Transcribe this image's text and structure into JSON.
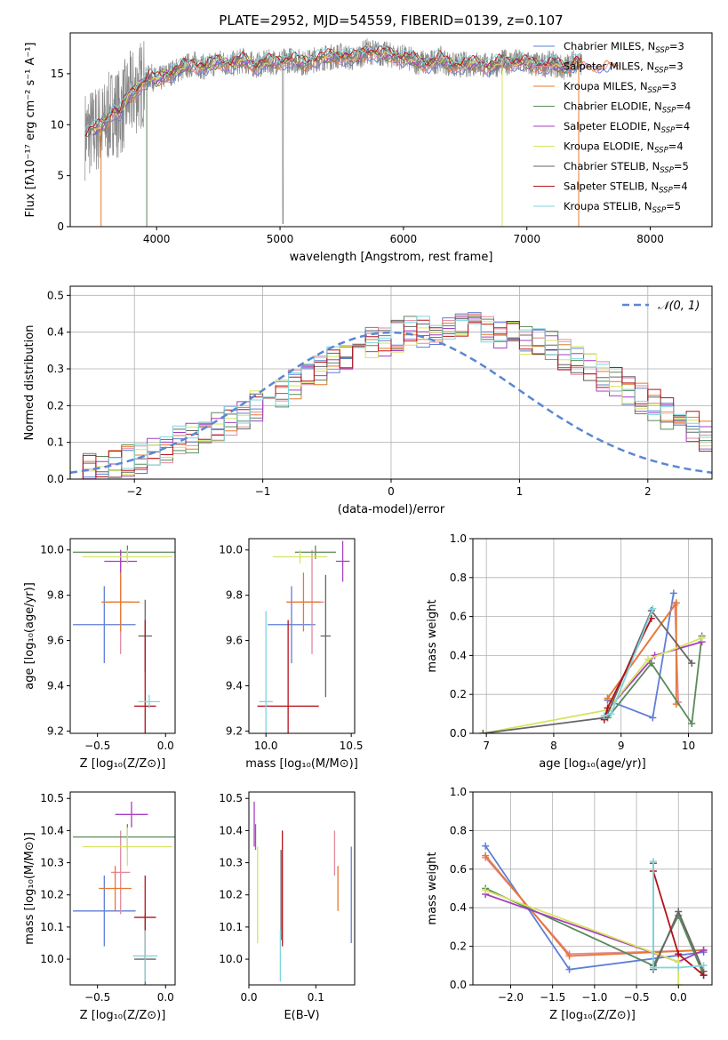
{
  "colors": {
    "chabrier_miles": "#5f7fd6",
    "salpeter_miles": "#e3899f",
    "kroupa_miles": "#e6782f",
    "chabrier_elodie": "#5a8a5a",
    "salpeter_elodie": "#a63fbf",
    "kroupa_elodie": "#d7e35f",
    "chabrier_stelib": "#666666",
    "salpeter_stelib": "#b5121b",
    "kroupa_stelib": "#7fd6dd",
    "normal": "#5b86d4",
    "data": "#888888"
  },
  "chart_data": [
    {
      "id": "spectrum",
      "type": "line",
      "title": "PLATE=2952, MJD=54559, FIBERID=0139, z=0.107",
      "xlabel": "wavelength [Angstrom, rest frame]",
      "ylabel": "Flux [fλ10⁻¹⁷ erg cm⁻² s⁻¹ A⁻¹]",
      "xlim": [
        3300,
        8500
      ],
      "ylim": [
        0,
        19
      ],
      "xticks": [
        4000,
        5000,
        6000,
        7000,
        8000
      ],
      "yticks": [
        0,
        5,
        10,
        15
      ],
      "grid": false,
      "legend_position": "right",
      "continuum": {
        "x": [
          3420,
          3500,
          3580,
          3650,
          3700,
          3760,
          3820,
          3880,
          3950,
          4000,
          4100,
          4200,
          4300,
          4400,
          4500,
          4600,
          4700,
          4800,
          4900,
          5000,
          5100,
          5200,
          5300,
          5400,
          5500,
          5600,
          5700,
          5800,
          5900,
          6000,
          6100,
          6200,
          6300,
          6400,
          6500,
          6600,
          6700,
          6800,
          6900,
          7000,
          7100,
          7200,
          7300,
          7400,
          7450
        ],
        "y": [
          9.0,
          9.5,
          10.0,
          11.5,
          11.0,
          12.5,
          13.2,
          14.0,
          14.8,
          14.3,
          15.0,
          15.5,
          16.0,
          15.6,
          16.2,
          15.9,
          16.3,
          15.8,
          16.1,
          16.2,
          16.4,
          16.0,
          16.5,
          16.6,
          16.8,
          16.4,
          17.2,
          17.0,
          16.8,
          16.6,
          16.2,
          16.0,
          16.4,
          15.8,
          15.9,
          16.0,
          15.7,
          16.1,
          16.2,
          16.0,
          15.8,
          16.0,
          15.5,
          16.3,
          16.0
        ]
      },
      "series": [
        {
          "name": "Chabrier MILES, N_SSP=3",
          "key": "chabrier_miles"
        },
        {
          "name": "Salpeter MILES, N_SSP=3",
          "key": "salpeter_miles"
        },
        {
          "name": "Kroupa MILES, N_SSP=3",
          "key": "kroupa_miles"
        },
        {
          "name": "Chabrier ELODIE, N_SSP=4",
          "key": "chabrier_elodie"
        },
        {
          "name": "Salpeter ELODIE, N_SSP=4",
          "key": "salpeter_elodie"
        },
        {
          "name": "Kroupa ELODIE, N_SSP=4",
          "key": "kroupa_elodie"
        },
        {
          "name": "Chabrier STELIB, N_SSP=5",
          "key": "chabrier_stelib"
        },
        {
          "name": "Salpeter STELIB, N_SSP=4",
          "key": "salpeter_stelib"
        },
        {
          "name": "Kroupa STELIB, N_SSP=5",
          "key": "kroupa_stelib"
        }
      ],
      "legend": [
        {
          "prefix": "Chabrier MILES, N",
          "sub": "SSP",
          "suffix": "=3"
        },
        {
          "prefix": "Salpeter MILES, N",
          "sub": "SSP",
          "suffix": "=3"
        },
        {
          "prefix": "Kroupa MILES, N",
          "sub": "SSP",
          "suffix": "=3"
        },
        {
          "prefix": "Chabrier ELODIE, N",
          "sub": "SSP",
          "suffix": "=4"
        },
        {
          "prefix": "Salpeter ELODIE, N",
          "sub": "SSP",
          "suffix": "=4"
        },
        {
          "prefix": "Kroupa ELODIE, N",
          "sub": "SSP",
          "suffix": "=4"
        },
        {
          "prefix": "Chabrier STELIB, N",
          "sub": "SSP",
          "suffix": "=5"
        },
        {
          "prefix": "Salpeter STELIB, N",
          "sub": "SSP",
          "suffix": "=4"
        },
        {
          "prefix": "Kroupa STELIB, N",
          "sub": "SSP",
          "suffix": "=5"
        }
      ]
    },
    {
      "id": "residuals",
      "type": "histogram",
      "xlabel": "(data-model)/error",
      "ylabel": "Normed distribution",
      "xlim": [
        -2.5,
        2.5
      ],
      "ylim": [
        0,
        0.525
      ],
      "xticks": [
        -2,
        -1,
        0,
        1,
        2
      ],
      "yticks": [
        0.0,
        0.1,
        0.2,
        0.3,
        0.4,
        0.5
      ],
      "grid": true,
      "legend_label": "𝒩(0, 1)",
      "legend_position": "top-right",
      "bin_width": 0.1,
      "bins_start": -2.5,
      "base": [
        0.02,
        0.025,
        0.03,
        0.04,
        0.05,
        0.06,
        0.07,
        0.08,
        0.1,
        0.11,
        0.12,
        0.14,
        0.16,
        0.18,
        0.2,
        0.22,
        0.24,
        0.26,
        0.28,
        0.3,
        0.32,
        0.34,
        0.36,
        0.37,
        0.38,
        0.39,
        0.4,
        0.4,
        0.41,
        0.41,
        0.41,
        0.41,
        0.4,
        0.4,
        0.39,
        0.38,
        0.37,
        0.36,
        0.34,
        0.32,
        0.3,
        0.28,
        0.26,
        0.24,
        0.22,
        0.2,
        0.18,
        0.16,
        0.14,
        0.12,
        0.1,
        0.09,
        0.08,
        0.07,
        0.06,
        0.05,
        0.04,
        0.035,
        0.03,
        0.025
      ]
    },
    {
      "id": "age-vs-z",
      "type": "errorbar",
      "xlabel": "Z [log₁₀(Z/Z⊙)]",
      "ylabel": "age  [log₁₀(age/yr)]",
      "xlim": [
        -0.7,
        0.07
      ],
      "ylim": [
        9.19,
        10.05
      ],
      "xticks": [
        -0.5,
        0.0
      ],
      "yticks": [
        9.2,
        9.4,
        9.6,
        9.8,
        10.0
      ],
      "grid": false,
      "points": [
        {
          "key": "chabrier_miles",
          "x": -0.45,
          "xerr": 0.23,
          "y": 9.67,
          "yerr": 0.17
        },
        {
          "key": "salpeter_miles",
          "x": -0.33,
          "xerr": 0.07,
          "y": 9.77,
          "yerr": 0.23
        },
        {
          "key": "kroupa_miles",
          "x": -0.33,
          "xerr": 0.14,
          "y": 9.77,
          "yerr": 0.13
        },
        {
          "key": "chabrier_elodie",
          "x": -0.28,
          "xerr": 0.4,
          "y": 9.99,
          "yerr": 0.03
        },
        {
          "key": "salpeter_elodie",
          "x": -0.33,
          "xerr": 0.12,
          "y": 9.95,
          "yerr": 0.05
        },
        {
          "key": "kroupa_elodie",
          "x": -0.28,
          "xerr": 0.33,
          "y": 9.97,
          "yerr": 0.03
        },
        {
          "key": "chabrier_stelib",
          "x": -0.15,
          "xerr": 0.05,
          "y": 9.62,
          "yerr": 0.16
        },
        {
          "key": "salpeter_stelib",
          "x": -0.15,
          "xerr": 0.08,
          "y": 9.31,
          "yerr": 0.38
        },
        {
          "key": "kroupa_stelib",
          "x": -0.12,
          "xerr": 0.08,
          "y": 9.33,
          "yerr": 0.03
        }
      ]
    },
    {
      "id": "age-vs-mass",
      "type": "errorbar",
      "xlabel": "mass [log₁₀(M/M⊙)]",
      "ylabel": "",
      "xlim": [
        9.9,
        10.52
      ],
      "ylim": [
        9.19,
        10.05
      ],
      "xticks": [
        10.0,
        10.5
      ],
      "yticks": [
        9.2,
        9.4,
        9.6,
        9.8,
        10.0
      ],
      "grid": false,
      "points": [
        {
          "key": "chabrier_miles",
          "x": 10.15,
          "xerr": 0.14,
          "y": 9.67,
          "yerr": 0.17
        },
        {
          "key": "salpeter_miles",
          "x": 10.27,
          "xerr": 0.07,
          "y": 9.77,
          "yerr": 0.23
        },
        {
          "key": "kroupa_miles",
          "x": 10.22,
          "xerr": 0.1,
          "y": 9.77,
          "yerr": 0.13
        },
        {
          "key": "chabrier_elodie",
          "x": 10.29,
          "xerr": 0.12,
          "y": 9.99,
          "yerr": 0.03
        },
        {
          "key": "salpeter_elodie",
          "x": 10.45,
          "xerr": 0.04,
          "y": 9.95,
          "yerr": 0.09
        },
        {
          "key": "kroupa_elodie",
          "x": 10.2,
          "xerr": 0.16,
          "y": 9.97,
          "yerr": 0.03
        },
        {
          "key": "chabrier_stelib",
          "x": 10.35,
          "xerr": 0.03,
          "y": 9.62,
          "yerr": 0.27
        },
        {
          "key": "salpeter_stelib",
          "x": 10.13,
          "xerr": 0.18,
          "y": 9.31,
          "yerr": 0.38
        },
        {
          "key": "kroupa_stelib",
          "x": 10.0,
          "xerr": 0.04,
          "y": 9.33,
          "yerr": 0.4
        }
      ]
    },
    {
      "id": "weight-vs-age",
      "type": "line",
      "xlabel": "age  [log₁₀(age/yr)]",
      "ylabel": "mass weight",
      "xlim": [
        6.8,
        10.35
      ],
      "ylim": [
        0,
        1
      ],
      "xticks": [
        7,
        8,
        9,
        10
      ],
      "yticks": [
        0.0,
        0.2,
        0.4,
        0.6,
        0.8,
        1.0
      ],
      "grid": true,
      "series": [
        {
          "key": "chabrier_miles",
          "x": [
            8.8,
            9.47,
            9.78
          ],
          "y": [
            0.17,
            0.08,
            0.72
          ]
        },
        {
          "key": "salpeter_miles",
          "x": [
            8.8,
            9.8,
            9.85
          ],
          "y": [
            0.18,
            0.66,
            0.16
          ]
        },
        {
          "key": "kroupa_miles",
          "x": [
            8.8,
            9.82,
            9.82
          ],
          "y": [
            0.18,
            0.67,
            0.15
          ]
        },
        {
          "key": "chabrier_elodie",
          "x": [
            8.8,
            9.45,
            10.05,
            10.2
          ],
          "y": [
            0.08,
            0.36,
            0.05,
            0.5
          ]
        },
        {
          "key": "salpeter_elodie",
          "x": [
            8.8,
            9.5,
            10.2
          ],
          "y": [
            0.12,
            0.4,
            0.47
          ]
        },
        {
          "key": "kroupa_elodie",
          "x": [
            6.95,
            8.8,
            9.4,
            10.2
          ],
          "y": [
            0.0,
            0.12,
            0.38,
            0.49
          ]
        },
        {
          "key": "chabrier_stelib",
          "x": [
            6.95,
            8.75,
            8.8,
            9.45,
            10.05
          ],
          "y": [
            0.0,
            0.08,
            0.1,
            0.63,
            0.36
          ]
        },
        {
          "key": "salpeter_stelib",
          "x": [
            8.75,
            8.8,
            9.45
          ],
          "y": [
            0.07,
            0.13,
            0.59
          ]
        },
        {
          "key": "kroupa_stelib",
          "x": [
            8.75,
            8.85,
            9.47
          ],
          "y": [
            0.09,
            0.1,
            0.64
          ]
        }
      ]
    },
    {
      "id": "mass-vs-z",
      "type": "errorbar",
      "xlabel": "Z [log₁₀(Z/Z⊙)]",
      "ylabel": "mass [log₁₀(M/M⊙)]",
      "xlim": [
        -0.7,
        0.07
      ],
      "ylim": [
        9.92,
        10.52
      ],
      "xticks": [
        -0.5,
        0.0
      ],
      "yticks": [
        10.0,
        10.1,
        10.2,
        10.3,
        10.4,
        10.5
      ],
      "grid": false,
      "points": [
        {
          "key": "chabrier_miles",
          "x": -0.45,
          "xerr": 0.23,
          "y": 10.15,
          "yerr": 0.11
        },
        {
          "key": "salpeter_miles",
          "x": -0.33,
          "xerr": 0.07,
          "y": 10.27,
          "yerr": 0.13
        },
        {
          "key": "kroupa_miles",
          "x": -0.37,
          "xerr": 0.12,
          "y": 10.22,
          "yerr": 0.07
        },
        {
          "key": "chabrier_elodie",
          "x": -0.28,
          "xerr": 0.4,
          "y": 10.38,
          "yerr": 0.04
        },
        {
          "key": "salpeter_elodie",
          "x": -0.25,
          "xerr": 0.12,
          "y": 10.45,
          "yerr": 0.04
        },
        {
          "key": "kroupa_elodie",
          "x": -0.28,
          "xerr": 0.33,
          "y": 10.35,
          "yerr": 0.06
        },
        {
          "key": "chabrier_stelib",
          "x": -0.15,
          "xerr": 0.08,
          "y": 10.0,
          "yerr": 0.14
        },
        {
          "key": "salpeter_stelib",
          "x": -0.15,
          "xerr": 0.08,
          "y": 10.13,
          "yerr": 0.13
        },
        {
          "key": "kroupa_stelib",
          "x": -0.15,
          "xerr": 0.09,
          "y": 10.01,
          "yerr": 0.08
        }
      ]
    },
    {
      "id": "mass-vs-ebv",
      "type": "errorbar",
      "xlabel": "E(B-V)",
      "ylabel": "",
      "xlim": [
        0.0,
        0.158
      ],
      "ylim": [
        9.92,
        10.52
      ],
      "xticks": [
        0.0,
        0.1
      ],
      "yticks": [
        10.0,
        10.1,
        10.2,
        10.3,
        10.4,
        10.5
      ],
      "grid": false,
      "points": [
        {
          "key": "chabrier_miles",
          "x": 0.153,
          "xerr": 0,
          "y": 10.2,
          "yerr": 0.15
        },
        {
          "key": "salpeter_miles",
          "x": 0.128,
          "xerr": 0,
          "y": 10.33,
          "yerr": 0.07
        },
        {
          "key": "kroupa_miles",
          "x": 0.133,
          "xerr": 0,
          "y": 10.22,
          "yerr": 0.07
        },
        {
          "key": "chabrier_elodie",
          "x": 0.01,
          "xerr": 0,
          "y": 10.38,
          "yerr": 0.04
        },
        {
          "key": "salpeter_elodie",
          "x": 0.008,
          "xerr": 0,
          "y": 10.42,
          "yerr": 0.07
        },
        {
          "key": "kroupa_elodie",
          "x": 0.013,
          "xerr": 0,
          "y": 10.2,
          "yerr": 0.15
        },
        {
          "key": "chabrier_stelib",
          "x": 0.048,
          "xerr": 0,
          "y": 10.2,
          "yerr": 0.14
        },
        {
          "key": "salpeter_stelib",
          "x": 0.05,
          "xerr": 0,
          "y": 10.22,
          "yerr": 0.18
        },
        {
          "key": "kroupa_stelib",
          "x": 0.047,
          "xerr": 0,
          "y": 10.01,
          "yerr": 0.08
        }
      ]
    },
    {
      "id": "weight-vs-z",
      "type": "line",
      "xlabel": "Z [log₁₀(Z/Z⊙)]",
      "ylabel": "mass weight",
      "xlim": [
        -2.45,
        0.4
      ],
      "ylim": [
        0,
        1
      ],
      "xticks": [
        -2.0,
        -1.5,
        -1.0,
        -0.5,
        0.0
      ],
      "yticks": [
        0.0,
        0.2,
        0.4,
        0.6,
        0.8,
        1.0
      ],
      "grid": true,
      "series": [
        {
          "key": "chabrier_miles",
          "x": [
            -2.3,
            -1.3,
            0.3
          ],
          "y": [
            0.72,
            0.08,
            0.17
          ]
        },
        {
          "key": "salpeter_miles",
          "x": [
            -2.3,
            -1.3,
            0.3
          ],
          "y": [
            0.66,
            0.16,
            0.18
          ]
        },
        {
          "key": "kroupa_miles",
          "x": [
            -2.3,
            -1.3,
            0.3
          ],
          "y": [
            0.67,
            0.15,
            0.18
          ]
        },
        {
          "key": "chabrier_elodie",
          "x": [
            -2.3,
            -0.3,
            0.0,
            0.3
          ],
          "y": [
            0.5,
            0.1,
            0.36,
            0.05
          ]
        },
        {
          "key": "salpeter_elodie",
          "x": [
            -2.3,
            0.0,
            0.3
          ],
          "y": [
            0.47,
            0.12,
            0.18
          ]
        },
        {
          "key": "kroupa_elodie",
          "x": [
            -2.3,
            0.0,
            0.0
          ],
          "y": [
            0.49,
            0.12,
            0.0
          ]
        },
        {
          "key": "chabrier_stelib",
          "x": [
            -0.3,
            -0.3,
            0.0,
            0.3
          ],
          "y": [
            0.63,
            0.08,
            0.38,
            0.07
          ]
        },
        {
          "key": "salpeter_stelib",
          "x": [
            -0.3,
            0.0,
            0.3
          ],
          "y": [
            0.59,
            0.16,
            0.05
          ]
        },
        {
          "key": "kroupa_stelib",
          "x": [
            -0.3,
            -0.3,
            0.0,
            0.3
          ],
          "y": [
            0.64,
            0.09,
            0.09,
            0.1
          ]
        }
      ]
    }
  ]
}
